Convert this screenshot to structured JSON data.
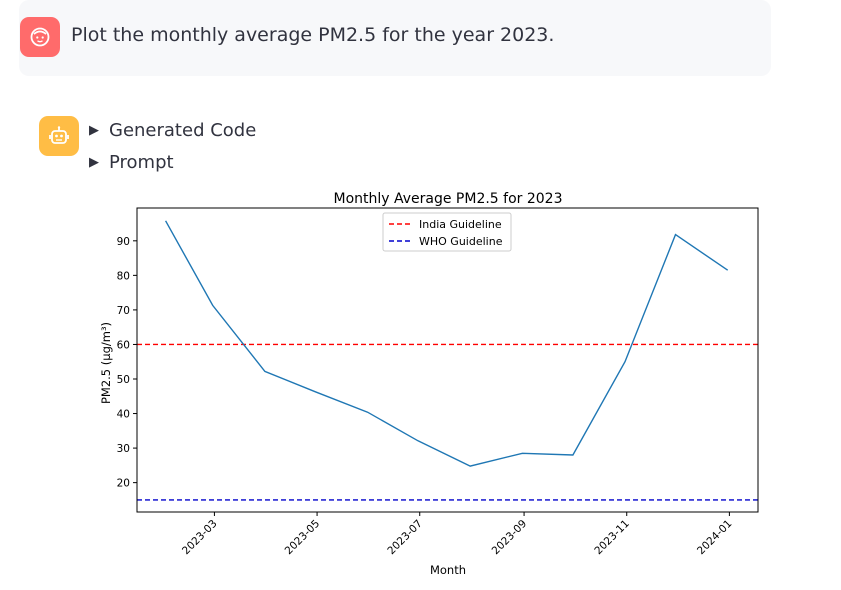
{
  "user_message": {
    "text": "Plot the monthly average PM2.5 for the year 2023."
  },
  "assistant": {
    "expanders": [
      {
        "label": "Generated Code",
        "expanded": false
      },
      {
        "label": "Prompt",
        "expanded": false
      }
    ]
  },
  "icons": {
    "user_avatar": "face-icon",
    "assistant_avatar": "robot-icon",
    "expander": "triangle-right-icon"
  },
  "colors": {
    "user_avatar_bg": "#ff6b6b",
    "assistant_avatar_bg": "#ffbd45",
    "user_message_bg": "#f7f8fa",
    "series_line": "#1f77b4",
    "india_guideline": "#ff0000",
    "who_guideline": "#0000cc"
  },
  "chart_data": {
    "type": "line",
    "title": "Monthly Average PM2.5 for 2023",
    "xlabel": "Month",
    "ylabel": "PM2.5 (µg/m³)",
    "x": [
      "2023-01-31",
      "2023-02-28",
      "2023-03-31",
      "2023-04-30",
      "2023-05-31",
      "2023-06-30",
      "2023-07-31",
      "2023-08-31",
      "2023-09-30",
      "2023-10-31",
      "2023-11-30",
      "2023-12-31"
    ],
    "series": [
      {
        "name": "",
        "values": [
          95.8,
          71.3,
          52.2,
          46.3,
          40.4,
          32.1,
          24.8,
          28.5,
          28.0,
          55.0,
          91.8,
          81.5
        ]
      }
    ],
    "reference_lines": [
      {
        "name": "India Guideline",
        "value": 60,
        "style": "dashed",
        "color": "#ff0000"
      },
      {
        "name": "WHO Guideline",
        "value": 15,
        "style": "dashed",
        "color": "#0000cc"
      }
    ],
    "xticks": [
      "2023-03",
      "2023-05",
      "2023-07",
      "2023-09",
      "2023-11",
      "2024-01"
    ],
    "yticks": [
      20,
      30,
      40,
      50,
      60,
      70,
      80,
      90
    ],
    "ylim": [
      11.5,
      99.5
    ],
    "xlim": [
      "2023-01-14",
      "2024-01-18"
    ],
    "grid": false,
    "legend_position": "top-center"
  }
}
